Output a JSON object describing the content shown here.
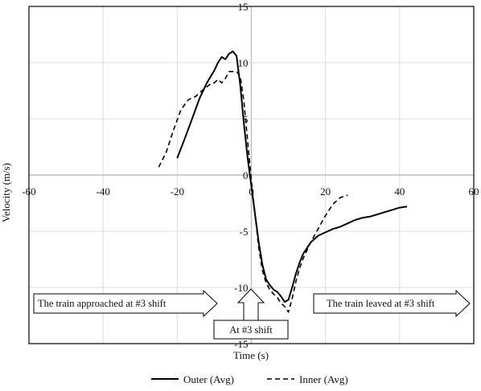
{
  "chart_data": {
    "type": "line",
    "xlabel": "Time (s)",
    "ylabel": "Velocity (m/s)",
    "xlim": [
      -60,
      60
    ],
    "ylim": [
      -15,
      15
    ],
    "xticks": [
      -60,
      -40,
      -20,
      0,
      20,
      40,
      60
    ],
    "yticks": [
      15,
      10,
      5,
      0,
      -5,
      -10,
      -15
    ],
    "xtick_labels": [
      "-60",
      "-40",
      "-20",
      "0",
      "20",
      "40",
      "60"
    ],
    "ytick_labels": [
      "15",
      "10",
      "5",
      "0",
      "-5",
      "-10",
      "-15"
    ],
    "grid": true,
    "legend_position": "bottom",
    "series": [
      {
        "name": "Outer (Avg)",
        "style": "solid",
        "color": "#000000",
        "x": [
          -20,
          -18,
          -16,
          -14,
          -12,
          -10,
          -9,
          -8,
          -7,
          -6,
          -5,
          -4,
          -3,
          -2,
          -1,
          0,
          1,
          2,
          3,
          4,
          5,
          6,
          7,
          8,
          9,
          10,
          11,
          12,
          13,
          14,
          16,
          18,
          20,
          22,
          24,
          26,
          28,
          30,
          32,
          34,
          36,
          38,
          40,
          42
        ],
        "y": [
          1.5,
          3.2,
          5.0,
          6.8,
          8.2,
          9.3,
          10.0,
          10.5,
          10.3,
          10.8,
          11.0,
          10.6,
          8.0,
          4.5,
          1.5,
          -1.0,
          -3.5,
          -6.0,
          -8.0,
          -9.3,
          -9.8,
          -10.2,
          -10.4,
          -10.8,
          -11.3,
          -11.1,
          -10.0,
          -8.8,
          -7.8,
          -7.0,
          -6.0,
          -5.4,
          -5.1,
          -4.8,
          -4.6,
          -4.3,
          -4.0,
          -3.8,
          -3.7,
          -3.5,
          -3.3,
          -3.1,
          -2.9,
          -2.8
        ]
      },
      {
        "name": "Inner (Avg)",
        "style": "dashed",
        "color": "#000000",
        "x": [
          -25,
          -23,
          -21,
          -19,
          -17,
          -15,
          -13,
          -11,
          -10,
          -9,
          -8,
          -7,
          -6,
          -5,
          -4,
          -3,
          -2,
          -1,
          0,
          1,
          2,
          3,
          4,
          5,
          6,
          7,
          8,
          9,
          10,
          11,
          12,
          13,
          14,
          16,
          18,
          20,
          22,
          24,
          26
        ],
        "y": [
          0.7,
          2.0,
          4.0,
          5.8,
          6.7,
          7.0,
          7.6,
          8.1,
          8.2,
          8.5,
          8.2,
          8.6,
          9.2,
          9.2,
          9.2,
          8.8,
          6.5,
          3.0,
          -0.5,
          -3.5,
          -6.5,
          -8.5,
          -9.6,
          -10.2,
          -10.6,
          -10.9,
          -11.4,
          -11.7,
          -12.2,
          -11.0,
          -9.5,
          -8.3,
          -7.4,
          -6.0,
          -4.8,
          -3.6,
          -2.6,
          -2.0,
          -1.8
        ]
      }
    ],
    "annotations": [
      {
        "text": "The train approached at #3 shift",
        "kind": "right-arrow"
      },
      {
        "text": "At #3 shift",
        "kind": "up-arrow"
      },
      {
        "text": "The train leaved at #3 shift",
        "kind": "right-arrow"
      }
    ]
  }
}
